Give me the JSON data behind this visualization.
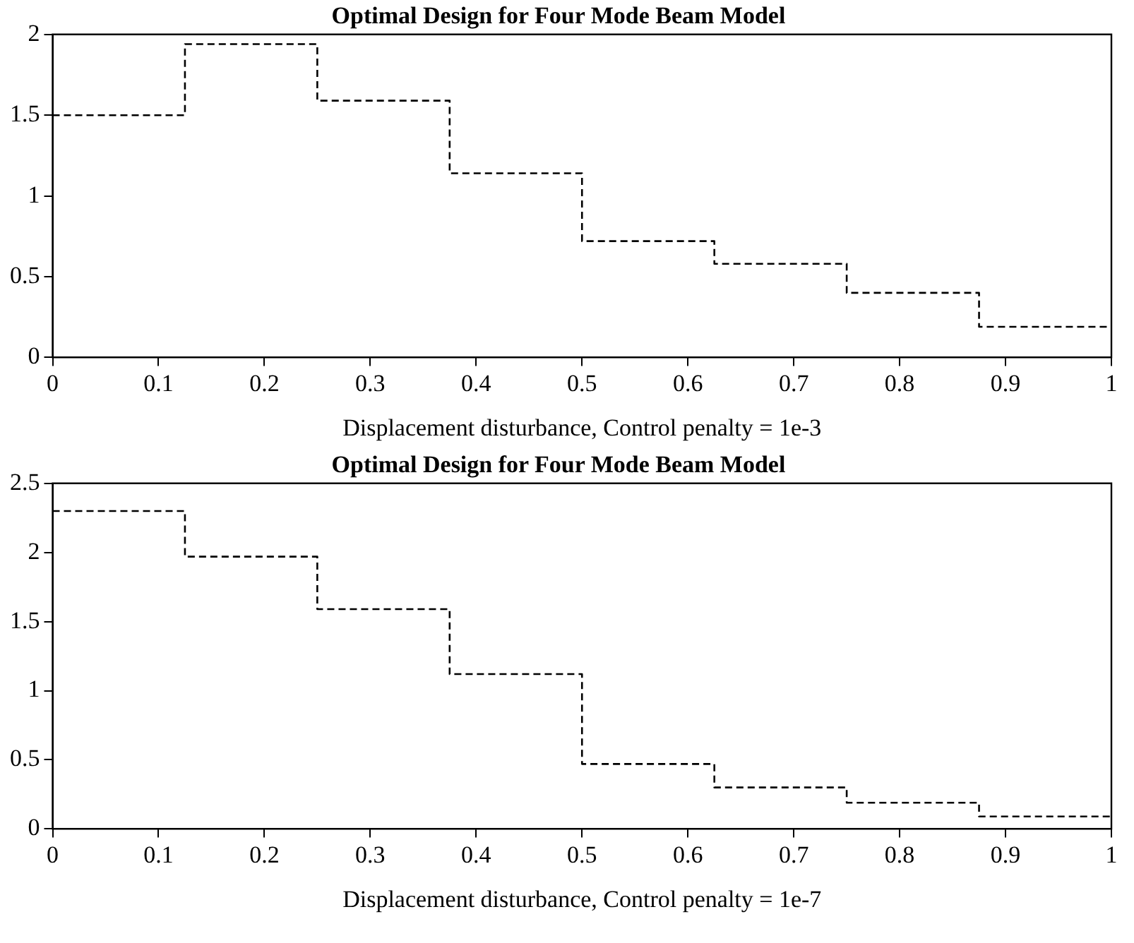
{
  "chart_data": [
    {
      "type": "step",
      "title": "Optimal Design for Four Mode Beam Model",
      "xlabel": "Displacement disturbance, Control penalty = 1e-3",
      "x": [
        0,
        0.125,
        0.25,
        0.375,
        0.5,
        0.625,
        0.75,
        0.875,
        1
      ],
      "series": [
        {
          "color": "#000000",
          "values": [
            1.5,
            1.94,
            1.59,
            1.14,
            0.72,
            0.58,
            0.4,
            0.19,
            0.19
          ]
        }
      ],
      "xlim": [
        0,
        1
      ],
      "xticks": [
        0,
        0.1,
        0.2,
        0.3,
        0.4,
        0.5,
        0.6,
        0.7,
        0.8,
        0.9,
        1
      ],
      "ylim": [
        0,
        2
      ],
      "yticks": [
        0,
        0.5,
        1,
        1.5,
        2
      ],
      "grid": false,
      "legend": false,
      "line_style": "dashed",
      "marker": "none"
    },
    {
      "type": "step",
      "title": "Optimal Design for Four Mode Beam Model",
      "xlabel": "Displacement disturbance, Control penalty = 1e-7",
      "x": [
        0,
        0.125,
        0.25,
        0.375,
        0.5,
        0.625,
        0.75,
        0.875,
        1
      ],
      "series": [
        {
          "color": "#000000",
          "values": [
            2.3,
            1.97,
            1.59,
            1.12,
            0.47,
            0.3,
            0.19,
            0.09,
            0.09
          ]
        }
      ],
      "xlim": [
        0,
        1
      ],
      "xticks": [
        0,
        0.1,
        0.2,
        0.3,
        0.4,
        0.5,
        0.6,
        0.7,
        0.8,
        0.9,
        1
      ],
      "ylim": [
        0,
        2.5
      ],
      "yticks": [
        0,
        0.5,
        1,
        1.5,
        2,
        2.5
      ],
      "grid": false,
      "legend": false,
      "line_style": "dashed",
      "marker": "none"
    }
  ]
}
